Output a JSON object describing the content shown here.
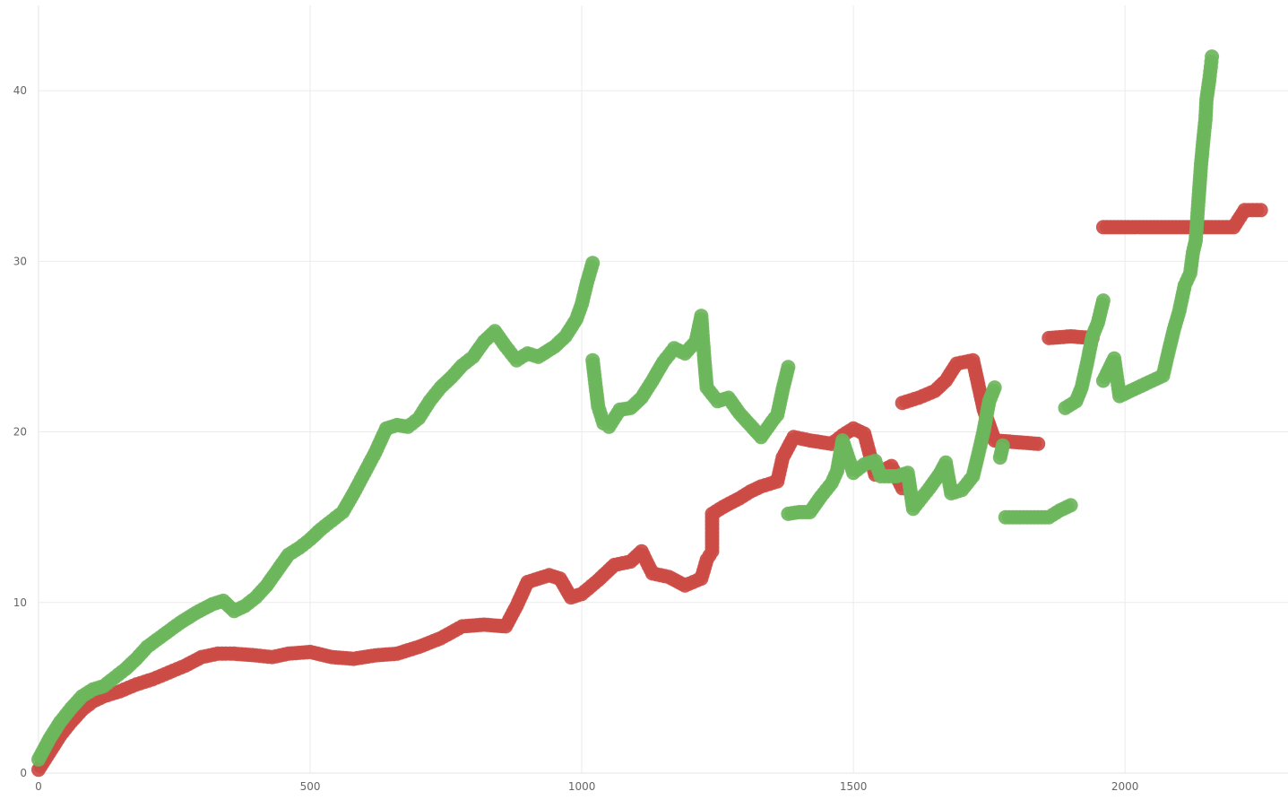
{
  "chart_data": {
    "type": "scatter",
    "title": "",
    "xlabel": "",
    "ylabel": "",
    "xlim": [
      0,
      2300
    ],
    "ylim": [
      0,
      45
    ],
    "x_ticks": [
      0,
      500,
      1000,
      1500,
      2000
    ],
    "y_ticks": [
      0,
      10,
      20,
      30,
      40
    ],
    "x_tick_labels": [
      "0",
      "500",
      "1000",
      "1500",
      "2000"
    ],
    "y_tick_labels": [
      "0",
      "10",
      "20",
      "30",
      "40"
    ],
    "grid": true,
    "legend": "none",
    "colors": {
      "red": "#cc4b45",
      "green": "#6cb65c"
    },
    "series": [
      {
        "color": "#cc4b45",
        "points": [
          [
            0,
            0.2
          ],
          [
            20,
            1.2
          ],
          [
            40,
            2.2
          ],
          [
            60,
            3.0
          ],
          [
            80,
            3.7
          ],
          [
            100,
            4.2
          ],
          [
            120,
            4.5
          ],
          [
            150,
            4.8
          ],
          [
            180,
            5.2
          ],
          [
            210,
            5.5
          ],
          [
            240,
            5.9
          ],
          [
            270,
            6.3
          ],
          [
            300,
            6.8
          ],
          [
            330,
            7.0
          ],
          [
            360,
            7.0
          ],
          [
            400,
            6.9
          ],
          [
            430,
            6.8
          ],
          [
            460,
            7.0
          ],
          [
            500,
            7.1
          ],
          [
            540,
            6.8
          ],
          [
            580,
            6.7
          ],
          [
            620,
            6.9
          ],
          [
            660,
            7.0
          ],
          [
            700,
            7.4
          ],
          [
            740,
            7.9
          ],
          [
            780,
            8.6
          ],
          [
            820,
            8.7
          ],
          [
            860,
            8.6
          ],
          [
            880,
            9.8
          ],
          [
            900,
            11.2
          ],
          [
            940,
            11.6
          ],
          [
            960,
            11.4
          ],
          [
            980,
            10.3
          ],
          [
            1000,
            10.5
          ],
          [
            1030,
            11.3
          ],
          [
            1060,
            12.2
          ],
          [
            1090,
            12.4
          ],
          [
            1110,
            13.0
          ],
          [
            1130,
            11.7
          ],
          [
            1160,
            11.5
          ],
          [
            1190,
            11.0
          ],
          [
            1220,
            11.4
          ],
          [
            1230,
            12.5
          ],
          [
            1240,
            13.0
          ],
          [
            1240,
            15.2
          ],
          [
            1260,
            15.6
          ],
          [
            1290,
            16.1
          ],
          [
            1310,
            16.5
          ],
          [
            1330,
            16.8
          ],
          [
            1360,
            17.1
          ],
          [
            1370,
            18.5
          ],
          [
            1390,
            19.7
          ],
          [
            1420,
            19.5
          ],
          [
            1460,
            19.3
          ],
          [
            1480,
            19.8
          ],
          [
            1500,
            20.2
          ],
          [
            1520,
            19.9
          ],
          [
            1540,
            17.5
          ],
          [
            1570,
            18.0
          ],
          [
            1590,
            16.7
          ],
          [
            1590,
            21.7
          ],
          [
            1620,
            22.0
          ],
          [
            1650,
            22.4
          ],
          [
            1670,
            23.0
          ],
          [
            1690,
            24.0
          ],
          [
            1720,
            24.2
          ],
          [
            1740,
            21.3
          ],
          [
            1760,
            19.5
          ],
          [
            1800,
            19.4
          ],
          [
            1840,
            19.3
          ],
          [
            1860,
            25.5
          ],
          [
            1900,
            25.6
          ],
          [
            1940,
            25.5
          ],
          [
            1960,
            32.0
          ],
          [
            2020,
            32.0
          ],
          [
            2080,
            32.0
          ],
          [
            2140,
            32.0
          ],
          [
            2200,
            32.0
          ],
          [
            2220,
            33.0
          ],
          [
            2250,
            33.0
          ]
        ]
      },
      {
        "color": "#6cb65c",
        "points": [
          [
            0,
            0.8
          ],
          [
            20,
            2.0
          ],
          [
            40,
            3.0
          ],
          [
            60,
            3.8
          ],
          [
            80,
            4.5
          ],
          [
            100,
            4.9
          ],
          [
            120,
            5.1
          ],
          [
            140,
            5.6
          ],
          [
            160,
            6.1
          ],
          [
            180,
            6.7
          ],
          [
            200,
            7.4
          ],
          [
            230,
            8.1
          ],
          [
            260,
            8.8
          ],
          [
            290,
            9.4
          ],
          [
            320,
            9.9
          ],
          [
            340,
            10.1
          ],
          [
            360,
            9.5
          ],
          [
            380,
            9.8
          ],
          [
            400,
            10.3
          ],
          [
            420,
            11.0
          ],
          [
            440,
            11.9
          ],
          [
            460,
            12.8
          ],
          [
            480,
            13.2
          ],
          [
            500,
            13.7
          ],
          [
            520,
            14.3
          ],
          [
            540,
            14.8
          ],
          [
            560,
            15.3
          ],
          [
            580,
            16.4
          ],
          [
            600,
            17.6
          ],
          [
            620,
            18.8
          ],
          [
            640,
            20.2
          ],
          [
            660,
            20.4
          ],
          [
            680,
            20.3
          ],
          [
            700,
            20.8
          ],
          [
            720,
            21.8
          ],
          [
            740,
            22.6
          ],
          [
            760,
            23.2
          ],
          [
            780,
            23.9
          ],
          [
            800,
            24.4
          ],
          [
            820,
            25.3
          ],
          [
            840,
            25.9
          ],
          [
            860,
            25.0
          ],
          [
            880,
            24.2
          ],
          [
            900,
            24.6
          ],
          [
            920,
            24.4
          ],
          [
            950,
            25.0
          ],
          [
            970,
            25.6
          ],
          [
            990,
            26.6
          ],
          [
            1000,
            27.5
          ],
          [
            1010,
            28.8
          ],
          [
            1020,
            29.9
          ],
          [
            1020,
            24.2
          ],
          [
            1030,
            21.5
          ],
          [
            1040,
            20.5
          ],
          [
            1050,
            20.3
          ],
          [
            1070,
            21.3
          ],
          [
            1090,
            21.4
          ],
          [
            1110,
            22.0
          ],
          [
            1130,
            23.0
          ],
          [
            1150,
            24.1
          ],
          [
            1170,
            24.9
          ],
          [
            1190,
            24.6
          ],
          [
            1210,
            25.3
          ],
          [
            1220,
            26.8
          ],
          [
            1225,
            24.5
          ],
          [
            1230,
            22.6
          ],
          [
            1250,
            21.8
          ],
          [
            1270,
            22.0
          ],
          [
            1290,
            21.1
          ],
          [
            1310,
            20.4
          ],
          [
            1330,
            19.7
          ],
          [
            1350,
            20.6
          ],
          [
            1360,
            21.0
          ],
          [
            1370,
            22.5
          ],
          [
            1380,
            23.8
          ],
          [
            1380,
            15.2
          ],
          [
            1400,
            15.3
          ],
          [
            1420,
            15.3
          ],
          [
            1440,
            16.2
          ],
          [
            1460,
            17.0
          ],
          [
            1470,
            17.7
          ],
          [
            1480,
            19.5
          ],
          [
            1500,
            17.6
          ],
          [
            1520,
            18.1
          ],
          [
            1540,
            18.3
          ],
          [
            1550,
            17.4
          ],
          [
            1580,
            17.4
          ],
          [
            1600,
            17.6
          ],
          [
            1610,
            15.5
          ],
          [
            1620,
            15.9
          ],
          [
            1640,
            16.7
          ],
          [
            1660,
            17.6
          ],
          [
            1670,
            18.2
          ],
          [
            1680,
            16.4
          ],
          [
            1700,
            16.6
          ],
          [
            1720,
            17.4
          ],
          [
            1730,
            18.7
          ],
          [
            1740,
            20.1
          ],
          [
            1750,
            21.8
          ],
          [
            1760,
            22.6
          ],
          [
            1770,
            18.5
          ],
          [
            1775,
            19.2
          ],
          [
            1780,
            15.0
          ],
          [
            1820,
            15.0
          ],
          [
            1860,
            15.0
          ],
          [
            1880,
            15.4
          ],
          [
            1900,
            15.7
          ],
          [
            1890,
            21.4
          ],
          [
            1910,
            21.8
          ],
          [
            1920,
            22.6
          ],
          [
            1930,
            24.0
          ],
          [
            1940,
            25.6
          ],
          [
            1950,
            26.4
          ],
          [
            1960,
            27.7
          ],
          [
            1960,
            23.0
          ],
          [
            1980,
            24.3
          ],
          [
            1990,
            22.1
          ],
          [
            2010,
            22.4
          ],
          [
            2030,
            22.7
          ],
          [
            2050,
            23.0
          ],
          [
            2070,
            23.3
          ],
          [
            2080,
            24.7
          ],
          [
            2090,
            26.0
          ],
          [
            2100,
            27.1
          ],
          [
            2110,
            28.6
          ],
          [
            2120,
            29.3
          ],
          [
            2125,
            30.5
          ],
          [
            2130,
            31.2
          ],
          [
            2135,
            33.5
          ],
          [
            2138,
            34.8
          ],
          [
            2140,
            35.7
          ],
          [
            2145,
            37.4
          ],
          [
            2148,
            38.3
          ],
          [
            2150,
            39.5
          ],
          [
            2155,
            40.6
          ],
          [
            2158,
            41.4
          ],
          [
            2160,
            42.0
          ]
        ]
      }
    ]
  }
}
